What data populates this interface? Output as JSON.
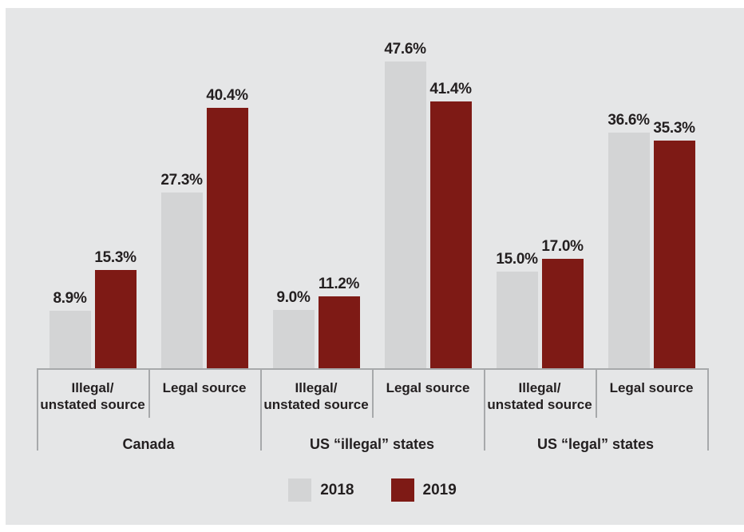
{
  "colors": {
    "panel_bg": "#e5e6e7",
    "bar_2018": "#d3d4d5",
    "bar_2019": "#7e1a15",
    "text": "#231f20",
    "axis_line": "#a7a9ab"
  },
  "chart_data": {
    "type": "bar",
    "title": "",
    "unit": "percent",
    "value_suffix": "%",
    "ylim": [
      0,
      50
    ],
    "grid": false,
    "legend_position": "bottom",
    "series": [
      {
        "name": "2018",
        "color": "#d3d4d5"
      },
      {
        "name": "2019",
        "color": "#7e1a15"
      }
    ],
    "groups": [
      {
        "label": "Canada",
        "categories": [
          {
            "label": "Illegal/\nunstated source",
            "values": [
              8.9,
              15.3
            ]
          },
          {
            "label": "Legal source",
            "values": [
              27.3,
              40.4
            ]
          }
        ]
      },
      {
        "label": "US “illegal” states",
        "categories": [
          {
            "label": "Illegal/\nunstated source",
            "values": [
              9.0,
              11.2
            ]
          },
          {
            "label": "Legal source",
            "values": [
              47.6,
              41.4
            ]
          }
        ]
      },
      {
        "label": "US “legal” states",
        "categories": [
          {
            "label": "Illegal/\nunstated source",
            "values": [
              15.0,
              17.0
            ]
          },
          {
            "label": "Legal source",
            "values": [
              36.6,
              35.3
            ]
          }
        ]
      }
    ]
  }
}
